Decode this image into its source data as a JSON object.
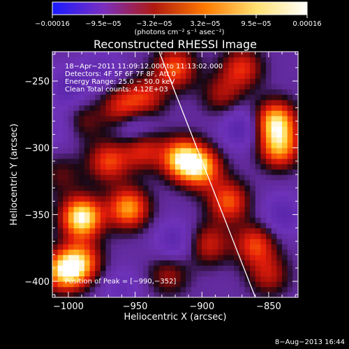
{
  "chart_data": {
    "type": "heatmap",
    "title": "Reconstructed RHESSI Image",
    "xlabel": "Heliocentric X (arcsec)",
    "ylabel": "Heliocentric Y (arcsec)",
    "xlim": [
      -1012,
      -828
    ],
    "ylim": [
      -412,
      -228
    ],
    "x_ticks": [
      -1000,
      -950,
      -900,
      -850
    ],
    "y_ticks": [
      -250,
      -300,
      -350,
      -400
    ],
    "x_tick_labels": [
      "−1000",
      "−950",
      "−900",
      "−850"
    ],
    "y_tick_labels": [
      "−250",
      "−300",
      "−350",
      "−400"
    ],
    "colorbar": {
      "min": -0.00016,
      "max": 0.00016,
      "tick_labels": [
        "−0.00016",
        "−9.5e−05",
        "−3.2e−05",
        "3.2e−05",
        "9.5e−05",
        "0.00016"
      ],
      "unit_label": "(photons cm⁻² s⁻¹ asec⁻²)",
      "colormap": [
        "#1a1aff",
        "#7a2fc0",
        "#b01a10",
        "#ff7a00",
        "#ffe070",
        "#ffffff"
      ]
    },
    "annotations": [
      "18−Apr−2011 11:09:12.000 to 11:13:02.000",
      "Detectors: 4F 5F 6F 7F 8F, Att 0",
      "Energy Range: 25.0 − 50.0 keV",
      "Clean     Total counts: 4.12E+03"
    ],
    "peak_label": "Position of Peak = [−990,−352]",
    "peak_position": [
      -990,
      -352
    ],
    "limb_line": [
      [
        -932,
        -228
      ],
      [
        -860,
        -412
      ]
    ],
    "sources": [
      {
        "x": -990,
        "y": -352,
        "value": 1.0
      },
      {
        "x": -1003,
        "y": -392,
        "value": 0.85
      },
      {
        "x": -990,
        "y": -385,
        "value": 0.6
      },
      {
        "x": -970,
        "y": -310,
        "value": 0.55
      },
      {
        "x": -945,
        "y": -300,
        "value": 0.55
      },
      {
        "x": -955,
        "y": -345,
        "value": 0.75
      },
      {
        "x": -915,
        "y": -308,
        "value": 0.85
      },
      {
        "x": -900,
        "y": -315,
        "value": 0.7
      },
      {
        "x": -880,
        "y": -340,
        "value": 0.6
      },
      {
        "x": -895,
        "y": -372,
        "value": 0.45
      },
      {
        "x": -860,
        "y": -372,
        "value": 0.55
      },
      {
        "x": -845,
        "y": -280,
        "value": 0.85
      },
      {
        "x": -842,
        "y": -300,
        "value": 0.7
      },
      {
        "x": -920,
        "y": -240,
        "value": 0.6
      },
      {
        "x": -942,
        "y": -262,
        "value": 0.45
      },
      {
        "x": -870,
        "y": -240,
        "value": 0.5
      },
      {
        "x": -885,
        "y": -260,
        "value": 0.35
      },
      {
        "x": -960,
        "y": -270,
        "value": 0.5
      },
      {
        "x": -990,
        "y": -280,
        "value": 0.3
      },
      {
        "x": -925,
        "y": -395,
        "value": 0.35
      },
      {
        "x": -850,
        "y": -395,
        "value": 0.4
      },
      {
        "x": -1005,
        "y": -320,
        "value": 0.25
      },
      {
        "x": -975,
        "y": -240,
        "value": -0.2
      },
      {
        "x": -1000,
        "y": -255,
        "value": -0.3
      },
      {
        "x": -950,
        "y": -285,
        "value": -0.4
      },
      {
        "x": -870,
        "y": -285,
        "value": -0.35
      },
      {
        "x": -920,
        "y": -370,
        "value": -0.3
      },
      {
        "x": -840,
        "y": -350,
        "value": -0.3
      },
      {
        "x": -960,
        "y": -405,
        "value": -0.2
      },
      {
        "x": -1005,
        "y": -285,
        "value": -0.2
      }
    ]
  },
  "footer": {
    "date": "8−Aug−2013 16:44"
  }
}
